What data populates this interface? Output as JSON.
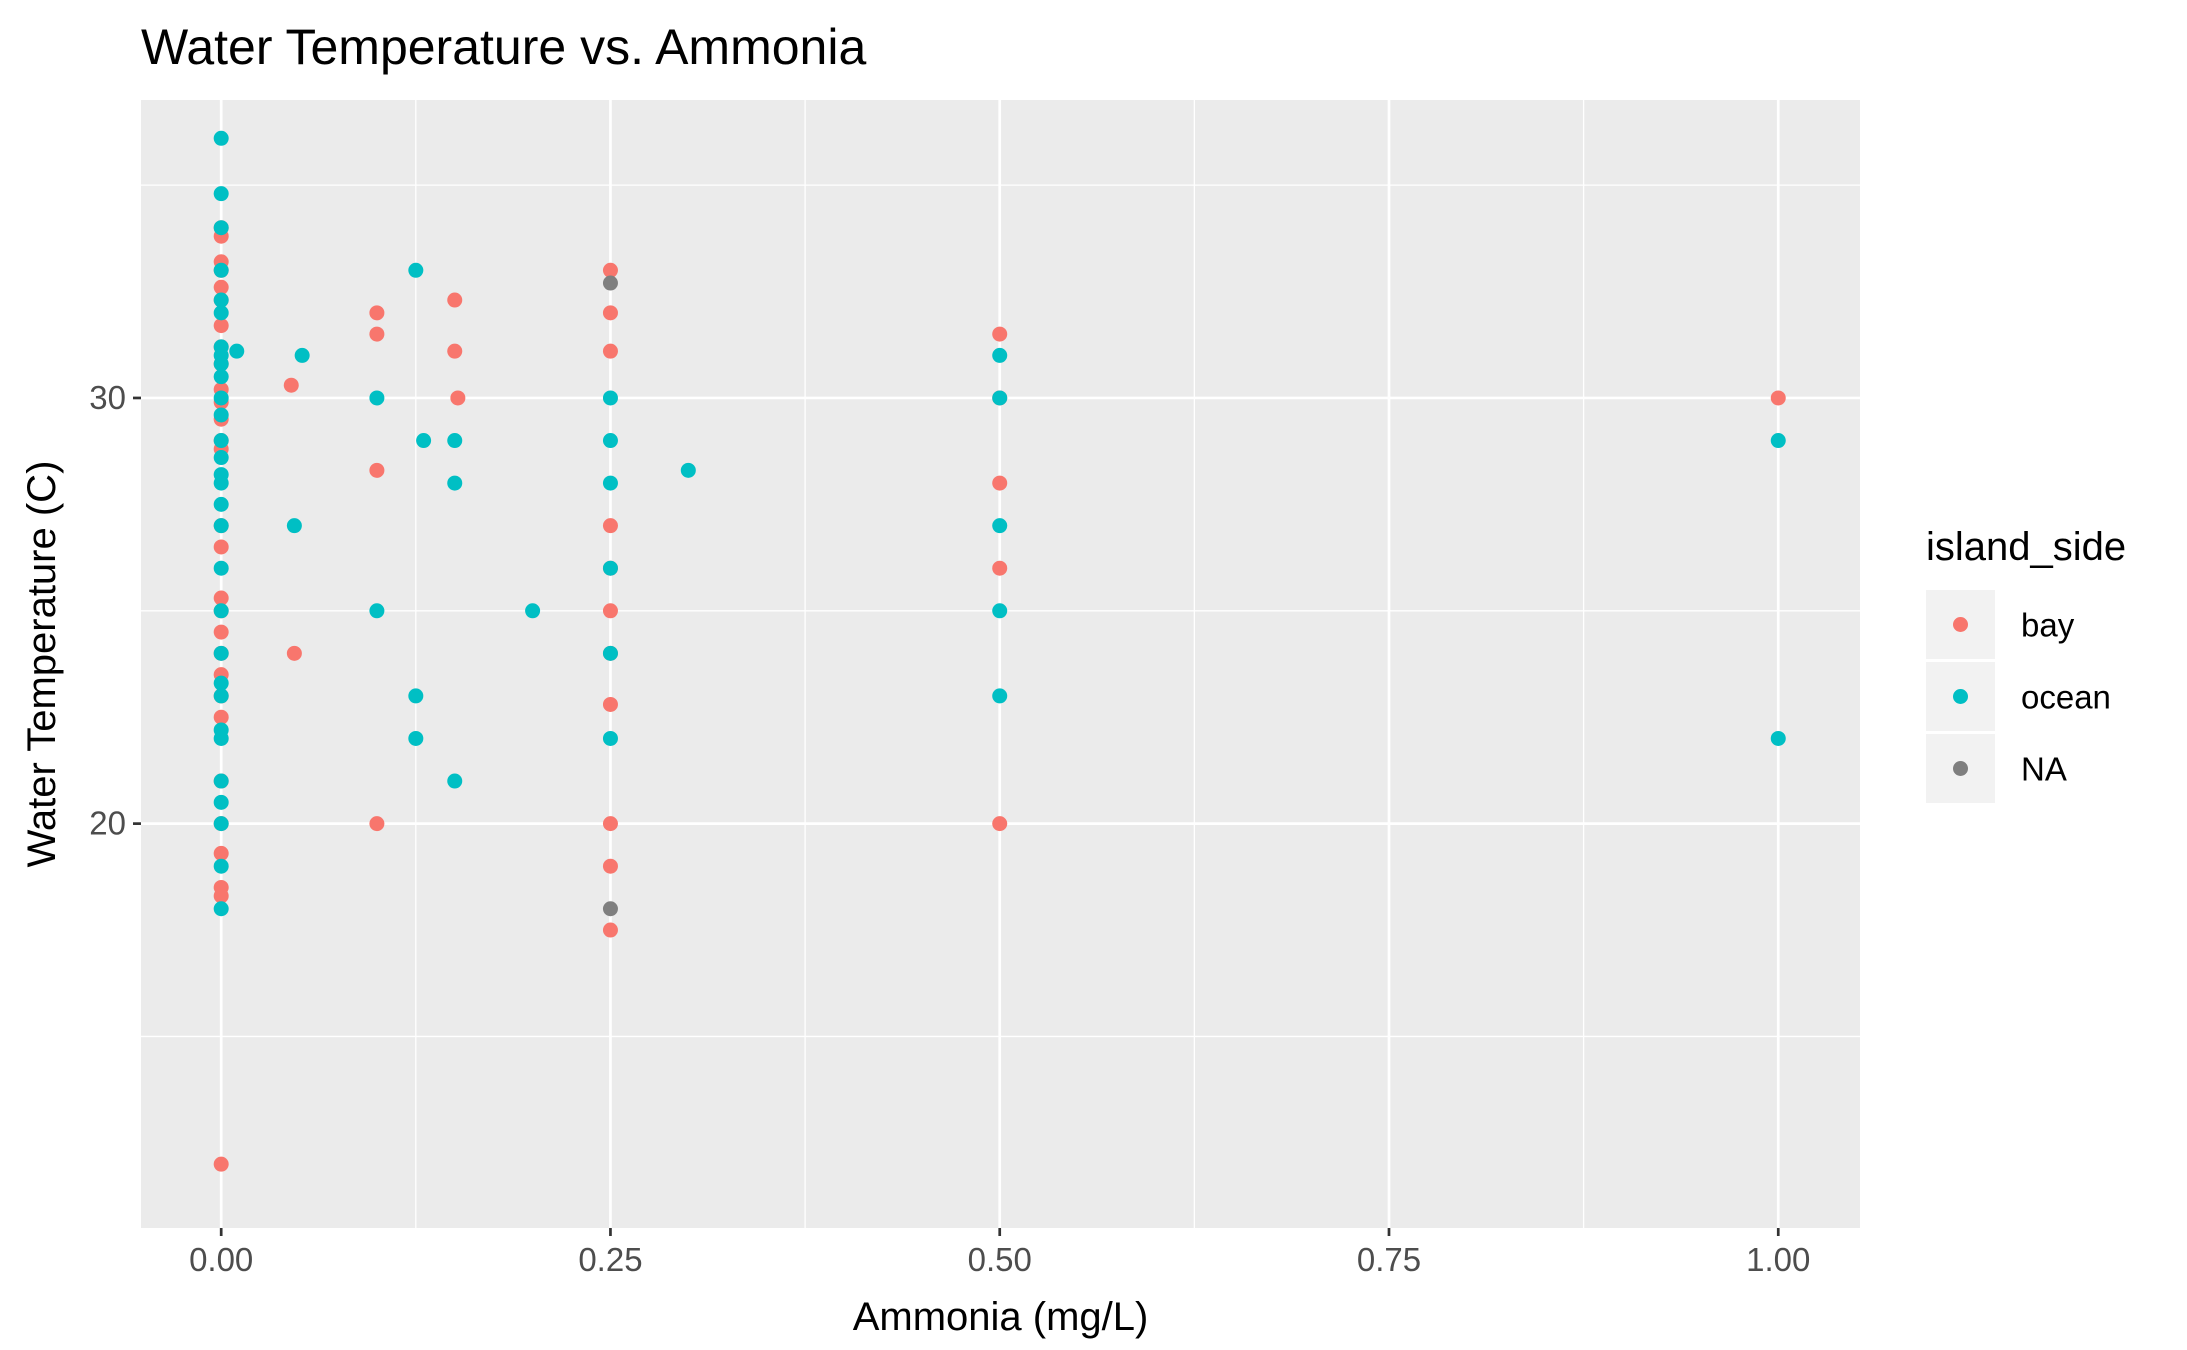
{
  "chart_data": {
    "type": "scatter",
    "title": "Water Temperature vs. Ammonia",
    "xlabel": "Ammonia (mg/L)",
    "ylabel": "Water Temperature (C)",
    "xlim": [
      -0.0515,
      1.0525
    ],
    "ylim": [
      10.5,
      37.0
    ],
    "x_ticks": [
      0.0,
      0.25,
      0.5,
      0.75,
      1.0
    ],
    "x_tick_labels": [
      "0.00",
      "0.25",
      "0.50",
      "0.75",
      "1.00"
    ],
    "y_ticks": [
      20,
      30
    ],
    "y_tick_labels": [
      "20",
      "30"
    ],
    "grid": true,
    "background": "#ebebeb",
    "legend": {
      "title": "island_side",
      "placement": "right",
      "entries": [
        {
          "label": "bay",
          "color": "#f8766d"
        },
        {
          "label": "ocean",
          "color": "#00bfc4"
        },
        {
          "label": "NA",
          "color": "#7f7f7f"
        }
      ]
    },
    "series": [
      {
        "name": "bay",
        "color": "#f8766d",
        "points": [
          [
            0,
            34.0
          ],
          [
            0,
            33.8
          ],
          [
            0,
            33.2
          ],
          [
            0,
            33.0
          ],
          [
            0,
            32.6
          ],
          [
            0,
            32.3
          ],
          [
            0,
            31.7
          ],
          [
            0,
            31.2
          ],
          [
            0,
            30.8
          ],
          [
            0,
            30.2
          ],
          [
            0,
            29.9
          ],
          [
            0,
            29.5
          ],
          [
            0,
            29.0
          ],
          [
            0,
            28.8
          ],
          [
            0,
            27.0
          ],
          [
            0,
            26.5
          ],
          [
            0,
            25.3
          ],
          [
            0,
            25.0
          ],
          [
            0,
            24.5
          ],
          [
            0,
            24.0
          ],
          [
            0,
            23.5
          ],
          [
            0,
            23.0
          ],
          [
            0,
            22.5
          ],
          [
            0,
            21.0
          ],
          [
            0,
            20.0
          ],
          [
            0,
            19.3
          ],
          [
            0,
            18.5
          ],
          [
            0,
            18.3
          ],
          [
            0,
            12.0
          ],
          [
            0.045,
            30.3
          ],
          [
            0.047,
            24.0
          ],
          [
            0.1,
            32.0
          ],
          [
            0.1,
            31.5
          ],
          [
            0.1,
            28.3
          ],
          [
            0.1,
            20.0
          ],
          [
            0.15,
            32.3
          ],
          [
            0.15,
            31.1
          ],
          [
            0.152,
            30.0
          ],
          [
            0.25,
            33.0
          ],
          [
            0.25,
            32.0
          ],
          [
            0.25,
            31.1
          ],
          [
            0.25,
            27.0
          ],
          [
            0.25,
            26.0
          ],
          [
            0.25,
            25.0
          ],
          [
            0.25,
            24.0
          ],
          [
            0.25,
            22.8
          ],
          [
            0.25,
            20.0
          ],
          [
            0.25,
            19.0
          ],
          [
            0.25,
            17.5
          ],
          [
            0.5,
            31.5
          ],
          [
            0.5,
            30.0
          ],
          [
            0.5,
            28.0
          ],
          [
            0.5,
            26.0
          ],
          [
            0.5,
            20.0
          ],
          [
            1.0,
            30.0
          ]
        ]
      },
      {
        "name": "ocean",
        "color": "#00bfc4",
        "points": [
          [
            0,
            36.1
          ],
          [
            0,
            34.8
          ],
          [
            0,
            34.0
          ],
          [
            0,
            33.0
          ],
          [
            0,
            32.3
          ],
          [
            0,
            32.0
          ],
          [
            0,
            31.2
          ],
          [
            0,
            31.0
          ],
          [
            0,
            30.8
          ],
          [
            0,
            30.5
          ],
          [
            0,
            30.0
          ],
          [
            0,
            29.6
          ],
          [
            0,
            29.0
          ],
          [
            0,
            28.6
          ],
          [
            0,
            28.2
          ],
          [
            0,
            28.0
          ],
          [
            0,
            27.5
          ],
          [
            0,
            27.0
          ],
          [
            0,
            26.0
          ],
          [
            0,
            25.0
          ],
          [
            0,
            24.0
          ],
          [
            0,
            23.3
          ],
          [
            0,
            23.0
          ],
          [
            0,
            22.2
          ],
          [
            0,
            22.0
          ],
          [
            0,
            21.0
          ],
          [
            0,
            20.5
          ],
          [
            0,
            20.0
          ],
          [
            0,
            19.0
          ],
          [
            0,
            18.0
          ],
          [
            0.01,
            31.1
          ],
          [
            0.047,
            27.0
          ],
          [
            0.052,
            31.0
          ],
          [
            0.1,
            30.0
          ],
          [
            0.1,
            25.0
          ],
          [
            0.125,
            33.0
          ],
          [
            0.125,
            23.0
          ],
          [
            0.125,
            22.0
          ],
          [
            0.13,
            29.0
          ],
          [
            0.15,
            29.0
          ],
          [
            0.15,
            28.0
          ],
          [
            0.15,
            21.0
          ],
          [
            0.2,
            25.0
          ],
          [
            0.25,
            30.0
          ],
          [
            0.25,
            29.0
          ],
          [
            0.25,
            28.0
          ],
          [
            0.25,
            26.0
          ],
          [
            0.25,
            24.0
          ],
          [
            0.25,
            22.0
          ],
          [
            0.3,
            28.3
          ],
          [
            0.5,
            31.0
          ],
          [
            0.5,
            30.0
          ],
          [
            0.5,
            27.0
          ],
          [
            0.5,
            25.0
          ],
          [
            0.5,
            23.0
          ],
          [
            1.0,
            29.0
          ],
          [
            1.0,
            22.0
          ]
        ]
      },
      {
        "name": "NA",
        "color": "#7f7f7f",
        "points": [
          [
            0.25,
            32.7
          ],
          [
            0.25,
            18.0
          ]
        ]
      }
    ]
  }
}
